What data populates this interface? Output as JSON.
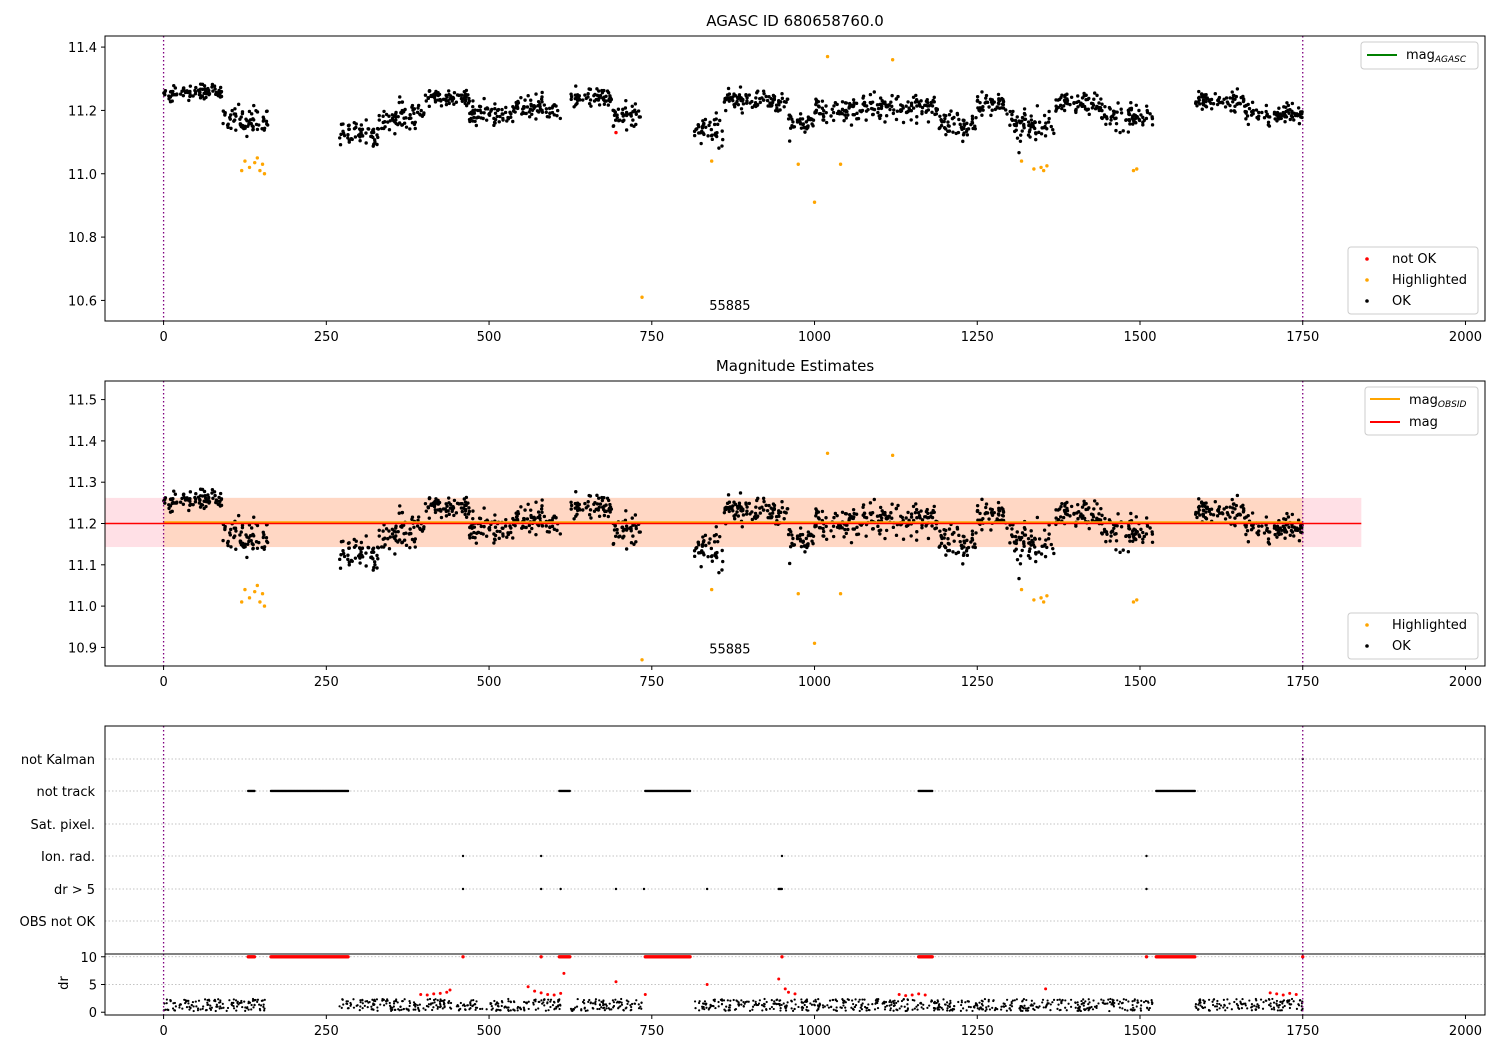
{
  "colors": {
    "ok": "#000000",
    "highlighted": "#ffa500",
    "not_ok": "#ff0000",
    "mag_agasc": "#008000",
    "mag_obsid": "#ffa500",
    "mag": "#ff0000",
    "band_outer": "#ffe0e6",
    "band_inner": "#ffd7c4",
    "vline": "#800080",
    "grid": "#b0b0b0",
    "dr_points": "#000000",
    "flag_points": "#000000"
  },
  "chart_data": [
    {
      "type": "scatter",
      "title": "AGASC ID 680658760.0",
      "xlim": [
        -90,
        2030
      ],
      "ylim": [
        10.535,
        11.435
      ],
      "xticks": [
        0,
        250,
        500,
        750,
        1000,
        1250,
        1500,
        1750,
        2000
      ],
      "xtick_labels": [
        "0",
        "250",
        "500",
        "750",
        "1000",
        "1250",
        "1500",
        "1750",
        "2000"
      ],
      "yticks": [
        10.6,
        10.8,
        11.0,
        11.2,
        11.4
      ],
      "ytick_labels": [
        "10.6",
        "10.8",
        "11.0",
        "11.2",
        "11.4"
      ],
      "vlines_x": [
        0,
        1750
      ],
      "annotation": {
        "text": "55885",
        "x": 870,
        "y": 10.57
      },
      "legend_lines": [
        {
          "label": "mag",
          "sub": "AGASC",
          "color_key": "mag_agasc",
          "location": "top-right"
        }
      ],
      "legend_markers": [
        {
          "label": "not OK",
          "color_key": "not_ok"
        },
        {
          "label": "Highlighted",
          "color_key": "highlighted"
        },
        {
          "label": "OK",
          "color_key": "ok"
        }
      ],
      "legend_markers_location": "bottom-right",
      "highlighted_points": [
        [
          120,
          11.01
        ],
        [
          125,
          11.04
        ],
        [
          132,
          11.02
        ],
        [
          140,
          11.035
        ],
        [
          144,
          11.05
        ],
        [
          148,
          11.01
        ],
        [
          152,
          11.03
        ],
        [
          155,
          11.0
        ],
        [
          842,
          11.04
        ],
        [
          975,
          11.03
        ],
        [
          1000,
          10.91
        ],
        [
          1020,
          11.37
        ],
        [
          1040,
          11.03
        ],
        [
          1120,
          11.36
        ],
        [
          1318,
          11.04
        ],
        [
          1337,
          11.015
        ],
        [
          1348,
          11.02
        ],
        [
          1352,
          11.01
        ],
        [
          1357,
          11.025
        ],
        [
          1490,
          11.01
        ],
        [
          1495,
          11.015
        ],
        [
          735,
          10.61
        ]
      ],
      "not_ok_points": [
        [
          695,
          11.13
        ]
      ]
    },
    {
      "type": "scatter",
      "title": "Magnitude Estimates",
      "xlim": [
        -90,
        2030
      ],
      "ylim": [
        10.855,
        11.545
      ],
      "xticks": [
        0,
        250,
        500,
        750,
        1000,
        1250,
        1500,
        1750,
        2000
      ],
      "xtick_labels": [
        "0",
        "250",
        "500",
        "750",
        "1000",
        "1250",
        "1500",
        "1750",
        "2000"
      ],
      "yticks": [
        10.9,
        11.0,
        11.1,
        11.2,
        11.3,
        11.4,
        11.5
      ],
      "ytick_labels": [
        "10.9",
        "11.0",
        "11.1",
        "11.2",
        "11.3",
        "11.4",
        "11.5"
      ],
      "vlines_x": [
        0,
        1750
      ],
      "mag": 11.2,
      "mag_obsid": 11.203,
      "band_outer": {
        "x": [
          -90,
          1840
        ],
        "y": [
          11.143,
          11.262
        ]
      },
      "band_inner": {
        "x": [
          0,
          1750
        ],
        "y": [
          11.143,
          11.262
        ]
      },
      "annotation": {
        "text": "55885",
        "x": 870,
        "y": 10.885
      },
      "legend_lines": [
        {
          "label": "mag",
          "sub": "OBSID",
          "color_key": "mag_obsid"
        },
        {
          "label": "mag",
          "sub": "",
          "color_key": "mag"
        }
      ],
      "legend_markers": [
        {
          "label": "Highlighted",
          "color_key": "highlighted"
        },
        {
          "label": "OK",
          "color_key": "ok"
        }
      ],
      "legend_markers_location": "bottom-right",
      "highlighted_points": [
        [
          120,
          11.01
        ],
        [
          125,
          11.04
        ],
        [
          132,
          11.02
        ],
        [
          140,
          11.035
        ],
        [
          144,
          11.05
        ],
        [
          148,
          11.01
        ],
        [
          152,
          11.03
        ],
        [
          155,
          11.0
        ],
        [
          842,
          11.04
        ],
        [
          975,
          11.03
        ],
        [
          1000,
          10.91
        ],
        [
          1020,
          11.37
        ],
        [
          1040,
          11.03
        ],
        [
          1120,
          11.365
        ],
        [
          1318,
          11.04
        ],
        [
          1337,
          11.015
        ],
        [
          1348,
          11.02
        ],
        [
          1352,
          11.01
        ],
        [
          1357,
          11.025
        ],
        [
          1490,
          11.01
        ],
        [
          1495,
          11.015
        ],
        [
          735,
          10.87
        ]
      ]
    },
    {
      "type": "scatter",
      "title": "",
      "xlim": [
        -90,
        2030
      ],
      "categories": [
        "not Kalman",
        "not track",
        "Sat. pixel.",
        "Ion. rad.",
        "dr > 5",
        "OBS not OK"
      ],
      "flag_segments": {
        "not track": [
          [
            130,
            140
          ],
          [
            165,
            285
          ],
          [
            608,
            625
          ],
          [
            740,
            810
          ],
          [
            1160,
            1182
          ],
          [
            1525,
            1585
          ]
        ],
        "Ion. rad.": [
          [
            460,
            460
          ],
          [
            580,
            580
          ],
          [
            950,
            950
          ],
          [
            1510,
            1510
          ]
        ],
        "dr > 5": [
          [
            460,
            460
          ],
          [
            580,
            580
          ],
          [
            610,
            610
          ],
          [
            695,
            695
          ],
          [
            738,
            738
          ],
          [
            835,
            835
          ],
          [
            945,
            950
          ],
          [
            1510,
            1510
          ]
        ],
        "not Kalman": [
          [
            1750,
            1750
          ]
        ]
      }
    },
    {
      "type": "scatter",
      "title": "",
      "ylabel": "dr",
      "xlim": [
        -90,
        2030
      ],
      "ylim": [
        -0.5,
        10.5
      ],
      "xticks": [
        0,
        250,
        500,
        750,
        1000,
        1250,
        1500,
        1750,
        2000
      ],
      "xtick_labels": [
        "0",
        "250",
        "500",
        "750",
        "1000",
        "1250",
        "1500",
        "1750",
        "2000"
      ],
      "yticks": [
        0,
        5,
        10
      ],
      "ytick_labels": [
        "0",
        "5",
        "10"
      ],
      "red_at_10_segments": [
        [
          130,
          140
        ],
        [
          165,
          285
        ],
        [
          460,
          460
        ],
        [
          580,
          580
        ],
        [
          608,
          625
        ],
        [
          740,
          810
        ],
        [
          950,
          950
        ],
        [
          1160,
          1182
        ],
        [
          1510,
          1510
        ],
        [
          1525,
          1585
        ],
        [
          1750,
          1750
        ]
      ],
      "red_points": [
        [
          395,
          3.2
        ],
        [
          405,
          3.1
        ],
        [
          415,
          3.3
        ],
        [
          425,
          3.4
        ],
        [
          435,
          3.6
        ],
        [
          440,
          4.0
        ],
        [
          560,
          4.6
        ],
        [
          570,
          3.8
        ],
        [
          580,
          3.5
        ],
        [
          590,
          3.2
        ],
        [
          600,
          3.1
        ],
        [
          610,
          3.4
        ],
        [
          615,
          7.0
        ],
        [
          695,
          5.5
        ],
        [
          740,
          3.2
        ],
        [
          835,
          5.0
        ],
        [
          945,
          6.0
        ],
        [
          955,
          4.2
        ],
        [
          960,
          3.6
        ],
        [
          970,
          3.3
        ],
        [
          1130,
          3.2
        ],
        [
          1140,
          3.0
        ],
        [
          1150,
          3.1
        ],
        [
          1160,
          3.3
        ],
        [
          1170,
          3.1
        ],
        [
          1355,
          4.2
        ],
        [
          1700,
          3.5
        ],
        [
          1710,
          3.3
        ],
        [
          1720,
          3.1
        ],
        [
          1730,
          3.4
        ],
        [
          1740,
          3.2
        ]
      ]
    }
  ]
}
